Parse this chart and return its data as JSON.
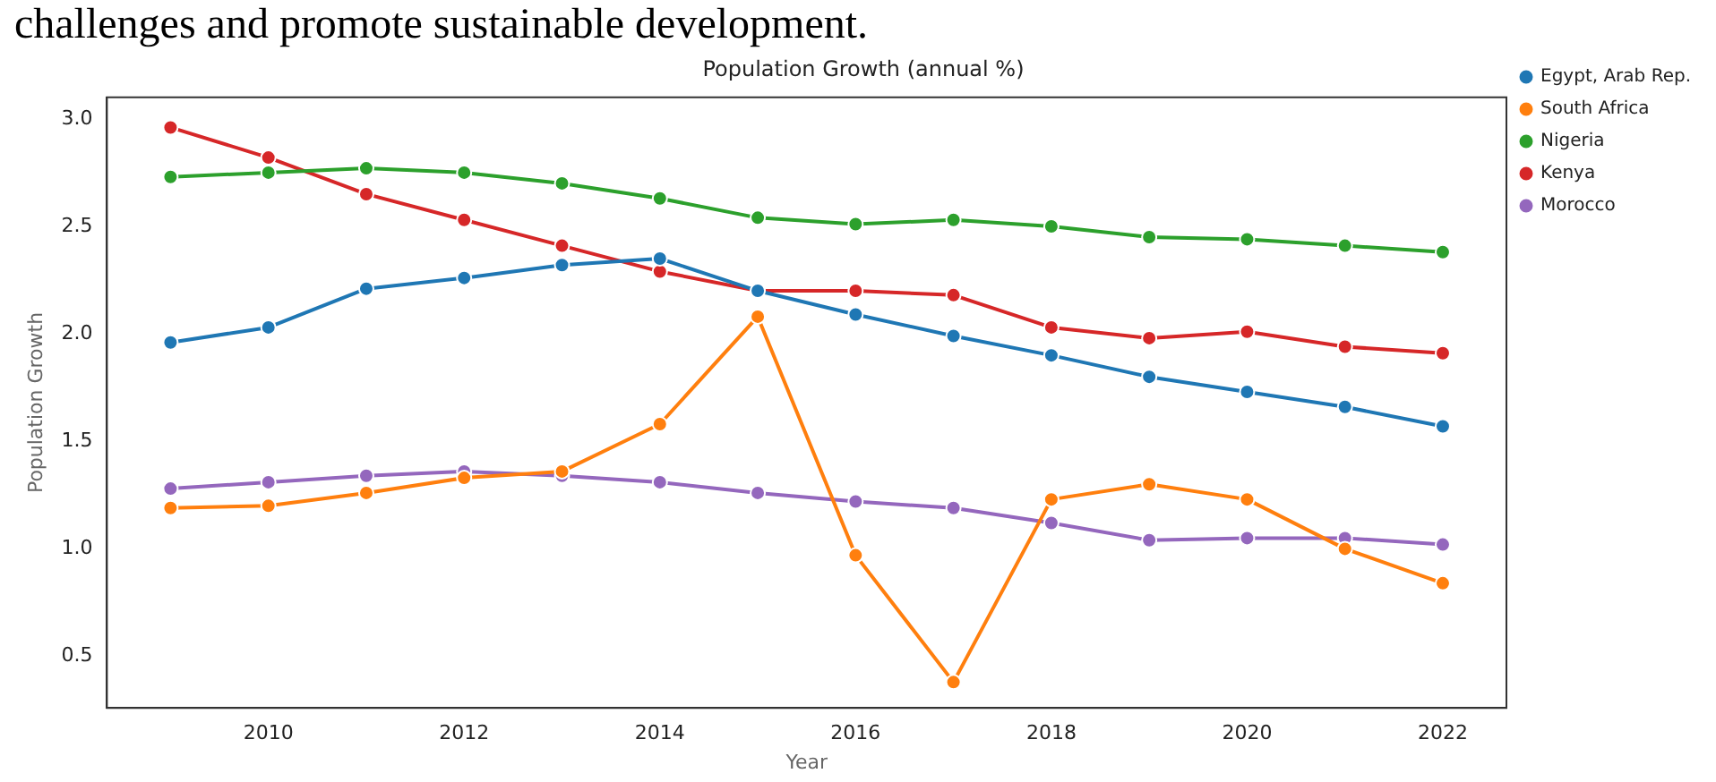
{
  "chart_data": {
    "type": "line",
    "title": "Population Growth (annual %)",
    "xlabel": "Year",
    "ylabel": "Population Growth",
    "annotations": [
      "challenges and promote sustainable development."
    ],
    "x": [
      2009,
      2010,
      2011,
      2012,
      2013,
      2014,
      2015,
      2016,
      2017,
      2018,
      2019,
      2020,
      2021,
      2022
    ],
    "series": [
      {
        "name": "Egypt, Arab Rep.",
        "color": "#1f77b4",
        "values": [
          1.96,
          2.03,
          2.21,
          2.26,
          2.32,
          2.35,
          2.2,
          2.09,
          1.99,
          1.9,
          1.8,
          1.73,
          1.66,
          1.57
        ]
      },
      {
        "name": "South Africa",
        "color": "#ff7f0e",
        "values": [
          1.19,
          1.2,
          1.26,
          1.33,
          1.36,
          1.58,
          2.08,
          0.97,
          0.38,
          1.23,
          1.3,
          1.23,
          1.0,
          0.84
        ]
      },
      {
        "name": "Nigeria",
        "color": "#2ca02c",
        "values": [
          2.73,
          2.75,
          2.77,
          2.75,
          2.7,
          2.63,
          2.54,
          2.51,
          2.53,
          2.5,
          2.45,
          2.44,
          2.41,
          2.38
        ]
      },
      {
        "name": "Kenya",
        "color": "#d62728",
        "values": [
          2.96,
          2.82,
          2.65,
          2.53,
          2.41,
          2.29,
          2.2,
          2.2,
          2.18,
          2.03,
          1.98,
          2.01,
          1.94,
          1.91
        ]
      },
      {
        "name": "Morocco",
        "color": "#9467bd",
        "values": [
          1.28,
          1.31,
          1.34,
          1.36,
          1.34,
          1.31,
          1.26,
          1.22,
          1.19,
          1.12,
          1.04,
          1.05,
          1.05,
          1.02
        ]
      }
    ],
    "xlim": [
      2008.35,
      2022.65
    ],
    "xticks": [
      2010,
      2012,
      2014,
      2016,
      2018,
      2020,
      2022
    ],
    "ylim": [
      0.26,
      3.1
    ],
    "yticks": [
      0.5,
      {
        "value": 1,
        "label": "1.0"
      },
      1.5,
      {
        "value": 2,
        "label": "2.0"
      },
      2.5,
      {
        "value": 3,
        "label": "3.0"
      }
    ],
    "grid": false,
    "legend": "top right",
    "marker": "circle",
    "line_style": "solid"
  }
}
